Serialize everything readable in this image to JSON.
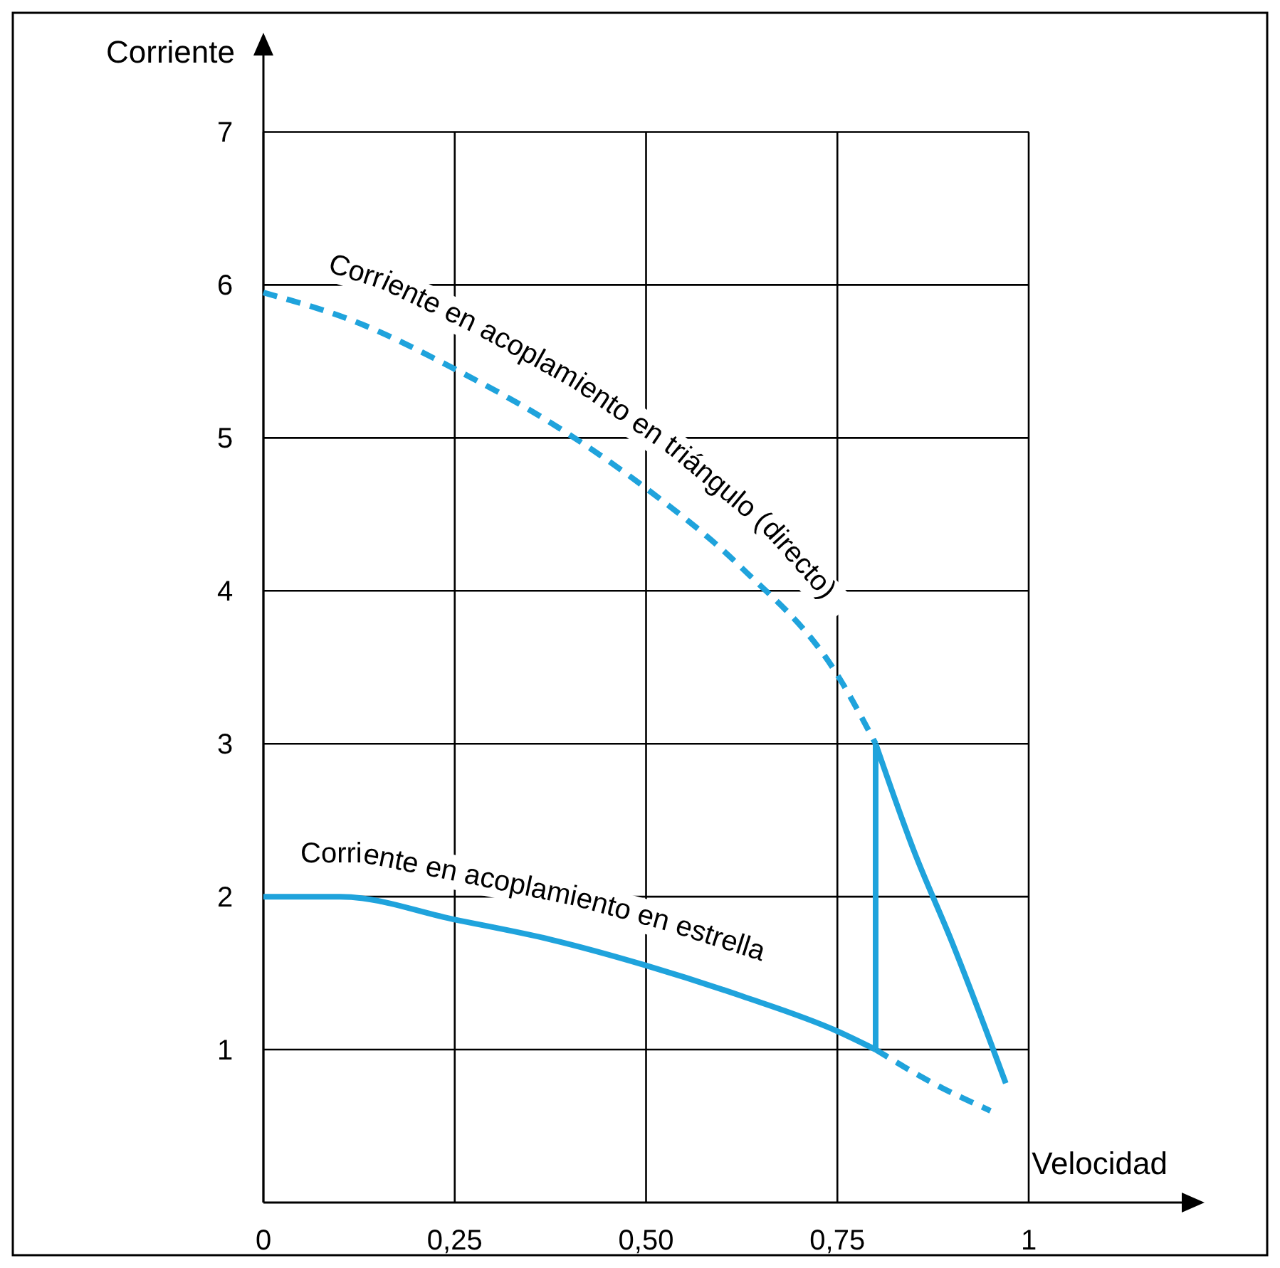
{
  "chart_data": {
    "type": "line",
    "xlabel": "Velocidad",
    "ylabel": "Corriente",
    "xlim": [
      0,
      1.2
    ],
    "ylim": [
      0,
      7.5
    ],
    "xticks": [
      0,
      {
        "value": 0.25,
        "label": "0,25"
      },
      {
        "value": 0.5,
        "label": "0,50"
      },
      {
        "value": 0.75,
        "label": "0,75"
      },
      1
    ],
    "yticks": [
      1,
      2,
      3,
      4,
      5,
      6,
      7
    ],
    "grid": true,
    "marker": "none",
    "series": [
      {
        "name": "Corriente en acoplamiento en triángulo (directo)",
        "color": "#1fa3dc",
        "line_style": "dashed",
        "x": [
          0,
          0.125,
          0.25,
          0.375,
          0.5,
          0.625,
          0.75,
          0.8
        ],
        "values": [
          5.95,
          5.75,
          5.45,
          5.1,
          4.67,
          4.15,
          3.45,
          3.0
        ]
      },
      {
        "color": "#1fa3dc",
        "line_style": "solid",
        "x": [
          0.8,
          0.85,
          0.9,
          0.95,
          0.97
        ],
        "values": [
          3.0,
          2.3,
          1.7,
          1.05,
          0.78
        ]
      },
      {
        "name": "Corriente en acoplamiento en estrella",
        "color": "#1fa3dc",
        "line_style": "solid",
        "x": [
          0,
          0.1,
          0.25,
          0.375,
          0.5,
          0.625,
          0.75,
          0.8
        ],
        "values": [
          2.0,
          2.0,
          1.85,
          1.72,
          1.55,
          1.35,
          1.12,
          1.0
        ]
      },
      {
        "color": "#1fa3dc",
        "line_style": "dashed",
        "x": [
          0.8,
          0.875,
          0.95
        ],
        "values": [
          1.0,
          0.78,
          0.6
        ]
      },
      {
        "color": "#1fa3dc",
        "line_style": "solid",
        "x": [
          0.8,
          0.8
        ],
        "values": [
          1.0,
          3.0
        ]
      }
    ]
  }
}
